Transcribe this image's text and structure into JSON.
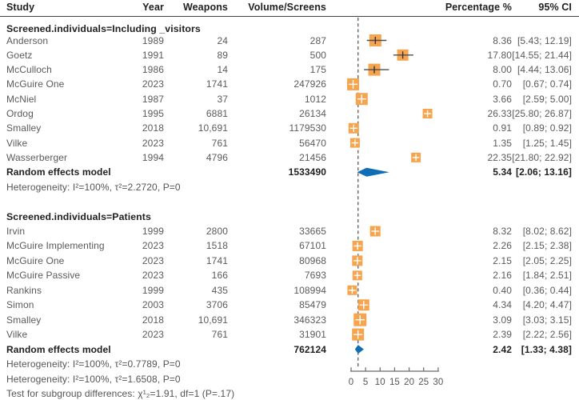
{
  "header": {
    "study": "Study",
    "year": "Year",
    "weapons": "Weapons",
    "volume": "Volume/Screens",
    "percentage": "Percentage %",
    "ci": "95% CI"
  },
  "colors": {
    "square": "#F7A44E",
    "diamond": "#0E6DB5",
    "whisker": "#4d4d4d",
    "tick": "#333333",
    "dashed_line": "#3c3c3c",
    "axis": "#6b6b6b",
    "axis_label": "#555555",
    "row_text": "#5a5a5a",
    "heading_text": "#1f1f1f"
  },
  "chart_data": {
    "type": "forest",
    "x_ticks": [
      0,
      5,
      10,
      15,
      20,
      25,
      30
    ],
    "xlim": [
      0,
      30
    ],
    "reference_line": 2.42,
    "legend_position": "none",
    "groups": [
      {
        "label": "Screened.individuals=Including _visitors",
        "studies": [
          {
            "study": "Anderson",
            "year": "1989",
            "weapons": "24",
            "volume": "287",
            "pct": "8.36",
            "ci": "[5.43; 12.19]",
            "est": 8.36,
            "lo": 5.43,
            "hi": 12.19,
            "size": 15
          },
          {
            "study": "Goetz",
            "year": "1991",
            "weapons": "89",
            "volume": "500",
            "pct": "17.80",
            "ci": "[14.55; 21.44]",
            "est": 17.8,
            "lo": 14.55,
            "hi": 21.44,
            "size": 14
          },
          {
            "study": "McCulloch",
            "year": "1986",
            "weapons": "14",
            "volume": "175",
            "pct": "8.00",
            "ci": "[4.44; 13.06]",
            "est": 8.0,
            "lo": 4.44,
            "hi": 13.06,
            "size": 15
          },
          {
            "study": "McGuire One",
            "year": "2023",
            "weapons": "1741",
            "volume": "247926",
            "pct": "0.70",
            "ci": "[0.67; 0.74]",
            "est": 0.7,
            "lo": 0.67,
            "hi": 0.74,
            "size": 15
          },
          {
            "study": "McNiel",
            "year": "1987",
            "weapons": "37",
            "volume": "1012",
            "pct": "3.66",
            "ci": "[2.59; 5.00]",
            "est": 3.66,
            "lo": 2.59,
            "hi": 5.0,
            "size": 15
          },
          {
            "study": "Ordog",
            "year": "1995",
            "weapons": "6881",
            "volume": "26134",
            "pct": "26.33",
            "ci": "[25.80; 26.87]",
            "est": 26.33,
            "lo": 25.8,
            "hi": 26.87,
            "size": 12
          },
          {
            "study": "Smalley",
            "year": "2018",
            "weapons": "10,691",
            "volume": "1179530",
            "pct": "0.91",
            "ci": "[0.89; 0.92]",
            "est": 0.91,
            "lo": 0.89,
            "hi": 0.92,
            "size": 13
          },
          {
            "study": "Vilke",
            "year": "2023",
            "weapons": "761",
            "volume": "56470",
            "pct": "1.35",
            "ci": "[1.25; 1.45]",
            "est": 1.35,
            "lo": 1.25,
            "hi": 1.45,
            "size": 12
          },
          {
            "study": "Wasserberger",
            "year": "1994",
            "weapons": "4796",
            "volume": "21456",
            "pct": "22.35",
            "ci": "[21.80; 22.92]",
            "est": 22.35,
            "lo": 21.8,
            "hi": 22.92,
            "size": 12
          }
        ],
        "summary": {
          "label": "Random effects model",
          "volume": "1533490",
          "pct": "5.34",
          "ci": "[2.06; 13.16]",
          "est": 5.34,
          "lo": 2.06,
          "hi": 13.16
        },
        "footnotes": [
          "Heterogeneity: I²=100%, τ²=2.2720, P=0"
        ]
      },
      {
        "label": "Screened.individuals=Patients",
        "studies": [
          {
            "study": "Irvin",
            "year": "1999",
            "weapons": "2800",
            "volume": "33665",
            "pct": "8.32",
            "ci": "[8.02; 8.62]",
            "est": 8.32,
            "lo": 8.02,
            "hi": 8.62,
            "size": 13
          },
          {
            "study": "McGuire Implementing",
            "year": "2023",
            "weapons": "1518",
            "volume": "67101",
            "pct": "2.26",
            "ci": "[2.15; 2.38]",
            "est": 2.26,
            "lo": 2.15,
            "hi": 2.38,
            "size": 13
          },
          {
            "study": "McGuire One",
            "year": "2023",
            "weapons": "1741",
            "volume": "80968",
            "pct": "2.15",
            "ci": "[2.05; 2.25]",
            "est": 2.15,
            "lo": 2.05,
            "hi": 2.25,
            "size": 13
          },
          {
            "study": "McGuire Passive",
            "year": "2023",
            "weapons": "166",
            "volume": "7693",
            "pct": "2.16",
            "ci": "[1.84; 2.51]",
            "est": 2.16,
            "lo": 1.84,
            "hi": 2.51,
            "size": 12
          },
          {
            "study": "Rankins",
            "year": "1999",
            "weapons": "435",
            "volume": "108994",
            "pct": "0.40",
            "ci": "[0.36; 0.44]",
            "est": 0.4,
            "lo": 0.36,
            "hi": 0.44,
            "size": 12
          },
          {
            "study": "Simon",
            "year": "2003",
            "weapons": "3706",
            "volume": "85479",
            "pct": "4.34",
            "ci": "[4.20; 4.47]",
            "est": 4.34,
            "lo": 4.2,
            "hi": 4.47,
            "size": 14
          },
          {
            "study": "Smalley",
            "year": "2018",
            "weapons": "10,691",
            "volume": "346323",
            "pct": "3.09",
            "ci": "[3.03; 3.15]",
            "est": 3.09,
            "lo": 3.03,
            "hi": 3.15,
            "size": 16
          },
          {
            "study": "Vilke",
            "year": "2023",
            "weapons": "761",
            "volume": "31901",
            "pct": "2.39",
            "ci": "[2.22; 2.56]",
            "est": 2.39,
            "lo": 2.22,
            "hi": 2.56,
            "size": 15
          }
        ],
        "summary": {
          "label": "Random effects model",
          "volume": "762124",
          "pct": "2.42",
          "ci": "[1.33; 4.38]",
          "est": 2.42,
          "lo": 1.33,
          "hi": 4.38
        },
        "footnotes": [
          "Heterogeneity: I²=100%, τ²=0.7789, P=0"
        ]
      }
    ],
    "overall_footnotes": [
      "Heterogeneity: I²=100%, τ²=1.6508, P=0",
      "Test for subgroup differences: χ¹₂=1.91, df=1 (P=.17)"
    ]
  }
}
